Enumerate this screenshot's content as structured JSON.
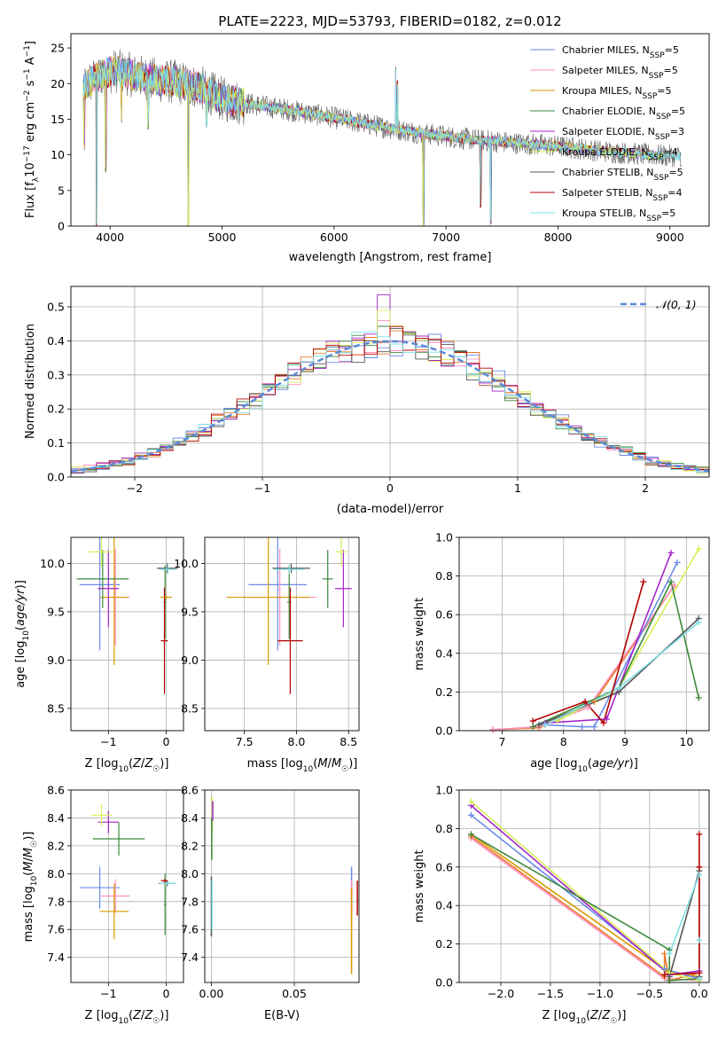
{
  "page": {
    "width": 819,
    "height": 1170
  },
  "title": "PLATE=2223, MJD=53793, FIBERID=0182, z=0.012",
  "colors": {
    "c0": "#6b8be8",
    "c1": "#ff8fbf",
    "c2": "#d99a00",
    "c3": "#3c8a3c",
    "c4": "#a326c9",
    "c5": "#d8f058",
    "c6": "#555555",
    "c7": "#b40000",
    "c8": "#7fdfe6",
    "model_line": "#5b8bd8",
    "orange": "#e87a2a",
    "grid": "#b0b0b0"
  },
  "chart_data": [
    {
      "type": "line",
      "id": "spectrum",
      "title": "PLATE=2223, MJD=53793, FIBERID=0182, z=0.012",
      "xlabel": "wavelength [Angstrom, rest frame]",
      "ylabel_parts": [
        "Flux [f",
        "λ",
        "10",
        "−17",
        " erg cm",
        "−2",
        " s",
        "−1",
        " A",
        "−1",
        "]"
      ],
      "xlim": [
        3650,
        9350
      ],
      "ylim": [
        0,
        27
      ],
      "xticks": [
        "4000",
        "5000",
        "6000",
        "7000",
        "8000",
        "9000"
      ],
      "yticks": [
        "0",
        "5",
        "10",
        "15",
        "20",
        "25"
      ],
      "grid": false,
      "legend_position": "top-right",
      "legend": [
        {
          "name": "Chabrier MILES, N",
          "sub": "SSP",
          "tail": "=5",
          "color_key": "c0"
        },
        {
          "name": "Salpeter MILES, N",
          "sub": "SSP",
          "tail": "=5",
          "color_key": "c1"
        },
        {
          "name": "Kroupa MILES, N",
          "sub": "SSP",
          "tail": "=5",
          "color_key": "c2"
        },
        {
          "name": "Chabrier ELODIE, N",
          "sub": "SSP",
          "tail": "=5",
          "color_key": "c3"
        },
        {
          "name": "Salpeter ELODIE, N",
          "sub": "SSP",
          "tail": "=3",
          "color_key": "c4"
        },
        {
          "name": "Kroupa ELODIE, N",
          "sub": "SSP",
          "tail": "=4",
          "color_key": "c5"
        },
        {
          "name": "Chabrier STELIB, N",
          "sub": "SSP",
          "tail": "=5",
          "color_key": "c6"
        },
        {
          "name": "Salpeter STELIB, N",
          "sub": "SSP",
          "tail": "=4",
          "color_key": "c7"
        },
        {
          "name": "Kroupa STELIB, N",
          "sub": "SSP",
          "tail": "=5",
          "color_key": "c8"
        }
      ],
      "continuum": [
        [
          3760,
          19.5
        ],
        [
          3850,
          20.5
        ],
        [
          3950,
          21.5
        ],
        [
          4050,
          21.8
        ],
        [
          4200,
          21.2
        ],
        [
          4400,
          20.5
        ],
        [
          4600,
          20.2
        ],
        [
          4800,
          19.5
        ],
        [
          5000,
          17.8
        ],
        [
          5300,
          17.0
        ],
        [
          5600,
          16.3
        ],
        [
          6000,
          15.2
        ],
        [
          6400,
          14.0
        ],
        [
          6800,
          13.0
        ],
        [
          7200,
          12.2
        ],
        [
          7600,
          11.7
        ],
        [
          8000,
          11.2
        ],
        [
          8400,
          10.5
        ],
        [
          8800,
          10.0
        ],
        [
          9100,
          9.8
        ]
      ],
      "spikes": [
        [
          3770,
          11
        ],
        [
          3880,
          0
        ],
        [
          3960,
          8
        ],
        [
          4102,
          15
        ],
        [
          4340,
          14
        ],
        [
          4700,
          0
        ],
        [
          4861,
          14
        ],
        [
          6550,
          22
        ],
        [
          6563,
          20
        ],
        [
          6800,
          0
        ],
        [
          7310,
          3
        ],
        [
          7400,
          0.5
        ]
      ]
    },
    {
      "type": "bar",
      "id": "residuals",
      "xlabel": "(data-model)/error",
      "ylabel": "Normed distribution",
      "xlim": [
        -2.5,
        2.5
      ],
      "ylim": [
        0,
        0.56
      ],
      "xticks": [
        "−2",
        "−1",
        "0",
        "1",
        "2"
      ],
      "yticks": [
        "0.0",
        "0.1",
        "0.2",
        "0.3",
        "0.4",
        "0.5"
      ],
      "grid": true,
      "legend_position": "top-right",
      "legend": "𝒩(0, 1)",
      "series_colors": [
        "c0",
        "c1",
        "c2",
        "c3",
        "c4",
        "c5",
        "c6",
        "c7",
        "c8"
      ],
      "bin_width": 0.1,
      "peak_values": {
        "c4": 0.535,
        "c5": 0.49,
        "c1": 0.46
      },
      "reference": {
        "name": "𝒩(0, 1)",
        "mean": 0,
        "sigma": 1
      }
    },
    {
      "type": "scatter",
      "id": "age_vs_Z",
      "xlabel": "Z [log₁₀(Z/Z☉)]",
      "ylabel": "age  [log₁₀(age/yr)]",
      "xlim": [
        -1.65,
        0.3
      ],
      "ylim": [
        8.27,
        10.27
      ],
      "xticks": [
        "−1",
        "0"
      ],
      "yticks": [
        "8.5",
        "9.0",
        "9.5",
        "10.0"
      ],
      "grid": true,
      "points": [
        {
          "c": "c0",
          "x": -1.15,
          "y": 9.78,
          "xe": 0.35,
          "ye": 0.68
        },
        {
          "c": "c1",
          "x": -0.88,
          "y": 9.65,
          "xe": 0.25,
          "ye": 0.5
        },
        {
          "c": "c2",
          "x": -0.9,
          "y": 9.65,
          "xe": 0.25,
          "ye": 0.7
        },
        {
          "c": "c3",
          "x": -1.1,
          "y": 9.84,
          "xe": 0.45,
          "ye": 0.3
        },
        {
          "c": "c4",
          "x": -1.0,
          "y": 9.74,
          "xe": 0.18,
          "ye": 0.4
        },
        {
          "c": "c5",
          "x": -1.12,
          "y": 10.12,
          "xe": 0.22,
          "ye": 0.15
        },
        {
          "c": "c6",
          "x": 0.02,
          "y": 9.95,
          "xe": 0.18,
          "ye": 0.05
        },
        {
          "c": "c3",
          "x": -0.02,
          "y": 9.6,
          "xe": 0.02,
          "ye": 0.38
        },
        {
          "c": "c8",
          "x": 0.03,
          "y": 9.94,
          "xe": 0.15,
          "ye": 0.05
        },
        {
          "c": "c7",
          "x": -0.03,
          "y": 9.2,
          "xe": 0.06,
          "ye": 0.55
        },
        {
          "c": "c2",
          "x": 0.0,
          "y": 9.65,
          "xe": 0.1,
          "ye": 0.02
        }
      ]
    },
    {
      "type": "scatter",
      "id": "age_vs_mass",
      "xlabel": "mass [log₁₀(M/M☉)]",
      "xlim": [
        7.12,
        8.6
      ],
      "ylim": [
        8.27,
        10.27
      ],
      "xticks": [
        "7.5",
        "8.0",
        "8.5"
      ],
      "yticks": [
        "8.5",
        "9.0",
        "9.5",
        "10.0"
      ],
      "grid": true,
      "points": [
        {
          "c": "c0",
          "x": 7.82,
          "y": 9.78,
          "xe": 0.28,
          "ye": 0.68
        },
        {
          "c": "c1",
          "x": 7.84,
          "y": 9.65,
          "xe": 0.35,
          "ye": 0.5
        },
        {
          "c": "c2",
          "x": 7.73,
          "y": 9.65,
          "xe": 0.4,
          "ye": 0.7
        },
        {
          "c": "c3",
          "x": 8.3,
          "y": 9.84,
          "xe": 0.05,
          "ye": 0.3
        },
        {
          "c": "c4",
          "x": 8.45,
          "y": 9.74,
          "xe": 0.08,
          "ye": 0.4
        },
        {
          "c": "c5",
          "x": 8.43,
          "y": 10.12,
          "xe": 0.05,
          "ye": 0.15
        },
        {
          "c": "c6",
          "x": 7.95,
          "y": 9.95,
          "xe": 0.18,
          "ye": 0.05
        },
        {
          "c": "c3",
          "x": 7.93,
          "y": 9.6,
          "xe": 0.02,
          "ye": 0.38
        },
        {
          "c": "c8",
          "x": 7.93,
          "y": 9.94,
          "xe": 0.15,
          "ye": 0.05
        },
        {
          "c": "c7",
          "x": 7.94,
          "y": 9.2,
          "xe": 0.12,
          "ye": 0.55
        }
      ]
    },
    {
      "type": "line",
      "id": "weight_vs_age",
      "xlabel": "age  [log₁₀(age/yr)]",
      "ylabel": "mass weight",
      "xlim": [
        6.3,
        10.37
      ],
      "ylim": [
        0,
        1
      ],
      "xticks": [
        "7",
        "8",
        "9",
        "10"
      ],
      "yticks": [
        "0.0",
        "0.2",
        "0.4",
        "0.6",
        "0.8",
        "1.0"
      ],
      "grid": true,
      "series": [
        {
          "c": "c2",
          "pts": [
            [
              6.85,
              0.005
            ],
            [
              7.6,
              0.015
            ],
            [
              8.5,
              0.15
            ],
            [
              9.8,
              0.75
            ]
          ]
        },
        {
          "c": "orange",
          "pts": [
            [
              6.85,
              0.005
            ],
            [
              7.6,
              0.015
            ],
            [
              8.5,
              0.15
            ],
            [
              9.8,
              0.75
            ]
          ]
        },
        {
          "c": "c1",
          "pts": [
            [
              6.85,
              0.005
            ],
            [
              7.6,
              0.02
            ],
            [
              8.4,
              0.12
            ],
            [
              9.8,
              0.75
            ]
          ]
        },
        {
          "c": "c0",
          "pts": [
            [
              7.7,
              0.03
            ],
            [
              8.3,
              0.02
            ],
            [
              8.5,
              0.02
            ],
            [
              9.85,
              0.87
            ]
          ]
        },
        {
          "c": "c4",
          "pts": [
            [
              7.7,
              0.04
            ],
            [
              8.7,
              0.06
            ],
            [
              9.75,
              0.92
            ]
          ]
        },
        {
          "c": "c5",
          "pts": [
            [
              7.9,
              0.05
            ],
            [
              8.9,
              0.22
            ],
            [
              10.2,
              0.94
            ]
          ]
        },
        {
          "c": "c3",
          "pts": [
            [
              7.5,
              0.02
            ],
            [
              8.9,
              0.22
            ],
            [
              9.75,
              0.77
            ],
            [
              10.2,
              0.17
            ]
          ]
        },
        {
          "c": "c6",
          "pts": [
            [
              7.6,
              0.03
            ],
            [
              8.9,
              0.2
            ],
            [
              10.2,
              0.58
            ]
          ]
        },
        {
          "c": "c8",
          "pts": [
            [
              7.7,
              0.03
            ],
            [
              8.9,
              0.22
            ],
            [
              10.2,
              0.56
            ]
          ]
        },
        {
          "c": "c7",
          "pts": [
            [
              7.5,
              0.05
            ],
            [
              8.35,
              0.15
            ],
            [
              8.65,
              0.04
            ],
            [
              9.3,
              0.77
            ]
          ]
        }
      ]
    },
    {
      "type": "scatter",
      "id": "mass_vs_Z",
      "xlabel": "Z [log₁₀(Z/Z☉)]",
      "ylabel": "mass [log₁₀(M/M☉)]",
      "xlim": [
        -1.65,
        0.3
      ],
      "ylim": [
        7.22,
        8.6
      ],
      "xticks": [
        "−1",
        "0"
      ],
      "yticks": [
        "7.4",
        "7.6",
        "7.8",
        "8.0",
        "8.2",
        "8.4",
        "8.6"
      ],
      "grid": true,
      "points": [
        {
          "c": "c0",
          "x": -1.15,
          "y": 7.9,
          "xe": 0.35,
          "ye": 0.15
        },
        {
          "c": "c1",
          "x": -0.88,
          "y": 7.84,
          "xe": 0.25,
          "ye": 0.12
        },
        {
          "c": "c2",
          "x": -0.9,
          "y": 7.73,
          "xe": 0.25,
          "ye": 0.2
        },
        {
          "c": "c3",
          "x": -0.82,
          "y": 8.25,
          "xe": 0.45,
          "ye": 0.12
        },
        {
          "c": "c4",
          "x": -1.0,
          "y": 8.37,
          "xe": 0.18,
          "ye": 0.08
        },
        {
          "c": "c5",
          "x": -1.12,
          "y": 8.42,
          "xe": 0.18,
          "ye": 0.08
        },
        {
          "c": "c6",
          "x": 0.02,
          "y": 7.93,
          "xe": 0.15,
          "ye": 0.02
        },
        {
          "c": "c3",
          "x": -0.02,
          "y": 7.78,
          "xe": 0.02,
          "ye": 0.22
        },
        {
          "c": "c8",
          "x": 0.03,
          "y": 7.93,
          "xe": 0.15,
          "ye": 0.02
        },
        {
          "c": "c7",
          "x": -0.03,
          "y": 7.95,
          "xe": 0.06,
          "ye": 0.01
        }
      ]
    },
    {
      "type": "scatter",
      "id": "mass_vs_EBV",
      "xlabel": "E(B-V)",
      "xlim": [
        -0.004,
        0.089
      ],
      "ylim": [
        7.22,
        8.6
      ],
      "xticks": [
        "0.00",
        "0.05"
      ],
      "yticks": [
        "7.4",
        "7.6",
        "7.8",
        "8.0",
        "8.2",
        "8.4",
        "8.6"
      ],
      "grid": true,
      "vbars": [
        {
          "c": "c5",
          "x": 0.0005,
          "lo": 8.3,
          "hi": 8.55
        },
        {
          "c": "c4",
          "x": 0.0008,
          "lo": 8.38,
          "hi": 8.52
        },
        {
          "c": "c3",
          "x": 0.0002,
          "lo": 8.1,
          "hi": 8.4
        },
        {
          "c": "c6",
          "x": 0.0,
          "lo": 7.55,
          "hi": 7.98
        },
        {
          "c": "c8",
          "x": 0.0004,
          "lo": 7.6,
          "hi": 7.95
        },
        {
          "c": "c0",
          "x": 0.0845,
          "lo": 7.7,
          "hi": 8.05
        },
        {
          "c": "c1",
          "x": 0.0845,
          "lo": 7.65,
          "hi": 7.95
        },
        {
          "c": "c2",
          "x": 0.0845,
          "lo": 7.28,
          "hi": 7.9
        },
        {
          "c": "c7",
          "x": 0.088,
          "lo": 7.7,
          "hi": 7.95
        }
      ]
    },
    {
      "type": "line",
      "id": "weight_vs_Z",
      "xlabel": "Z [log₁₀(Z/Z☉)]",
      "ylabel": "mass weight",
      "xlim": [
        -2.42,
        0.1
      ],
      "ylim": [
        0,
        1
      ],
      "xticks": [
        "−2.0",
        "−1.5",
        "−1.0",
        "−0.5",
        "0.0"
      ],
      "yticks": [
        "0.0",
        "0.2",
        "0.4",
        "0.6",
        "0.8",
        "1.0"
      ],
      "grid": true,
      "series": [
        {
          "c": "c1",
          "pts": [
            [
              -2.3,
              0.75
            ],
            [
              -0.35,
              0.02
            ],
            [
              0,
              0.01
            ]
          ]
        },
        {
          "c": "orange",
          "pts": [
            [
              -2.3,
              0.76
            ],
            [
              -0.35,
              0.03
            ],
            [
              -0.35,
              0.15
            ],
            [
              -0.3,
              0.01
            ],
            [
              0,
              0.05
            ]
          ]
        },
        {
          "c": "c2",
          "pts": [
            [
              -2.3,
              0.77
            ],
            [
              -0.33,
              0.06
            ],
            [
              0,
              0.03
            ]
          ]
        },
        {
          "c": "c0",
          "pts": [
            [
              -2.3,
              0.87
            ],
            [
              -0.35,
              0.07
            ],
            [
              0,
              0.02
            ]
          ]
        },
        {
          "c": "c4",
          "pts": [
            [
              -2.3,
              0.92
            ],
            [
              -0.3,
              0.04
            ],
            [
              0,
              0.06
            ]
          ]
        },
        {
          "c": "c5",
          "pts": [
            [
              -2.3,
              0.94
            ],
            [
              -0.3,
              0.05
            ],
            [
              0,
              0.01
            ]
          ]
        },
        {
          "c": "c3",
          "pts": [
            [
              -2.3,
              0.77
            ],
            [
              -0.3,
              0.17
            ],
            [
              -0.3,
              0.01
            ],
            [
              0,
              0.02
            ]
          ]
        },
        {
          "c": "c6",
          "pts": [
            [
              -0.3,
              0.03
            ],
            [
              0,
              0.58
            ],
            [
              0,
              0.03
            ]
          ]
        },
        {
          "c": "c8",
          "pts": [
            [
              -0.3,
              0.15
            ],
            [
              0,
              0.56
            ],
            [
              0,
              0.22
            ],
            [
              0,
              0.02
            ]
          ]
        },
        {
          "c": "c7",
          "pts": [
            [
              -0.35,
              0.04
            ],
            [
              0,
              0.05
            ],
            [
              0,
              0.77
            ],
            [
              0,
              0.6
            ]
          ]
        }
      ]
    }
  ]
}
